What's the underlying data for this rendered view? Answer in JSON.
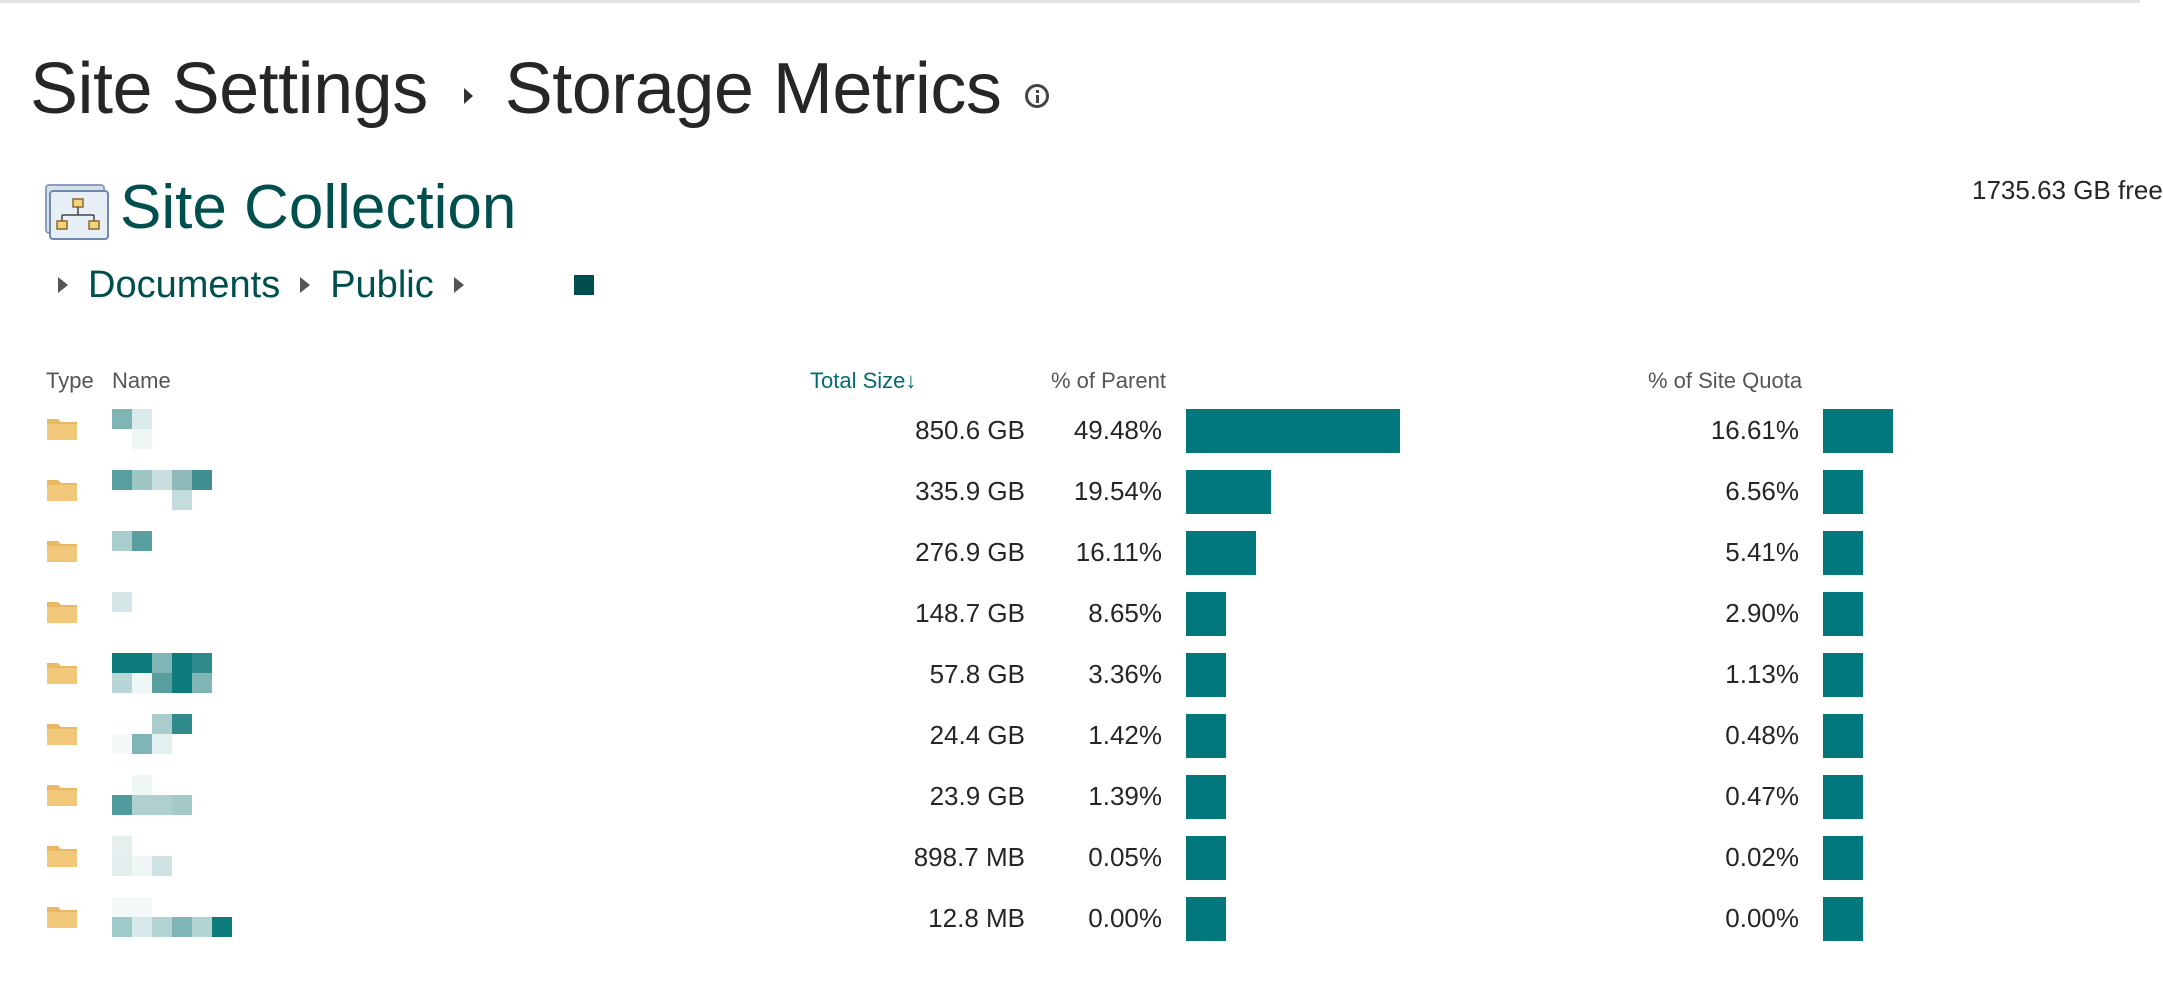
{
  "header": {
    "title_parent": "Site Settings",
    "title_current": "Storage Metrics"
  },
  "collection": {
    "title": "Site Collection",
    "free_space": "1735.63 GB free"
  },
  "path": [
    "Documents",
    "Public"
  ],
  "table": {
    "columns": {
      "type": "Type",
      "name": "Name",
      "total_size": "Total Size",
      "sort_indicator": "↓",
      "pct_parent": "% of Parent",
      "pct_quota": "% of Site Quota"
    },
    "rows": [
      {
        "size": "850.6 GB",
        "pct_parent": "49.48%",
        "pct_quota": "16.61%"
      },
      {
        "size": "335.9 GB",
        "pct_parent": "19.54%",
        "pct_quota": "6.56%"
      },
      {
        "size": "276.9 GB",
        "pct_parent": "16.11%",
        "pct_quota": "5.41%"
      },
      {
        "size": "148.7 GB",
        "pct_parent": "8.65%",
        "pct_quota": "2.90%"
      },
      {
        "size": "57.8 GB",
        "pct_parent": "3.36%",
        "pct_quota": "1.13%"
      },
      {
        "size": "24.4 GB",
        "pct_parent": "1.42%",
        "pct_quota": "0.48%"
      },
      {
        "size": "23.9 GB",
        "pct_parent": "1.39%",
        "pct_quota": "0.47%"
      },
      {
        "size": "898.7 MB",
        "pct_parent": "0.05%",
        "pct_quota": "0.02%"
      },
      {
        "size": "12.8 MB",
        "pct_parent": "0.00%",
        "pct_quota": "0.00%"
      }
    ]
  },
  "colors": {
    "accent": "#03787c",
    "heading": "#004f4f",
    "folder": "#f1c77a"
  },
  "icons": {
    "info": "info-icon",
    "site_collection": "site-hierarchy-icon",
    "folder": "folder-icon",
    "breadcrumb_separator": "chevron-right-icon"
  }
}
